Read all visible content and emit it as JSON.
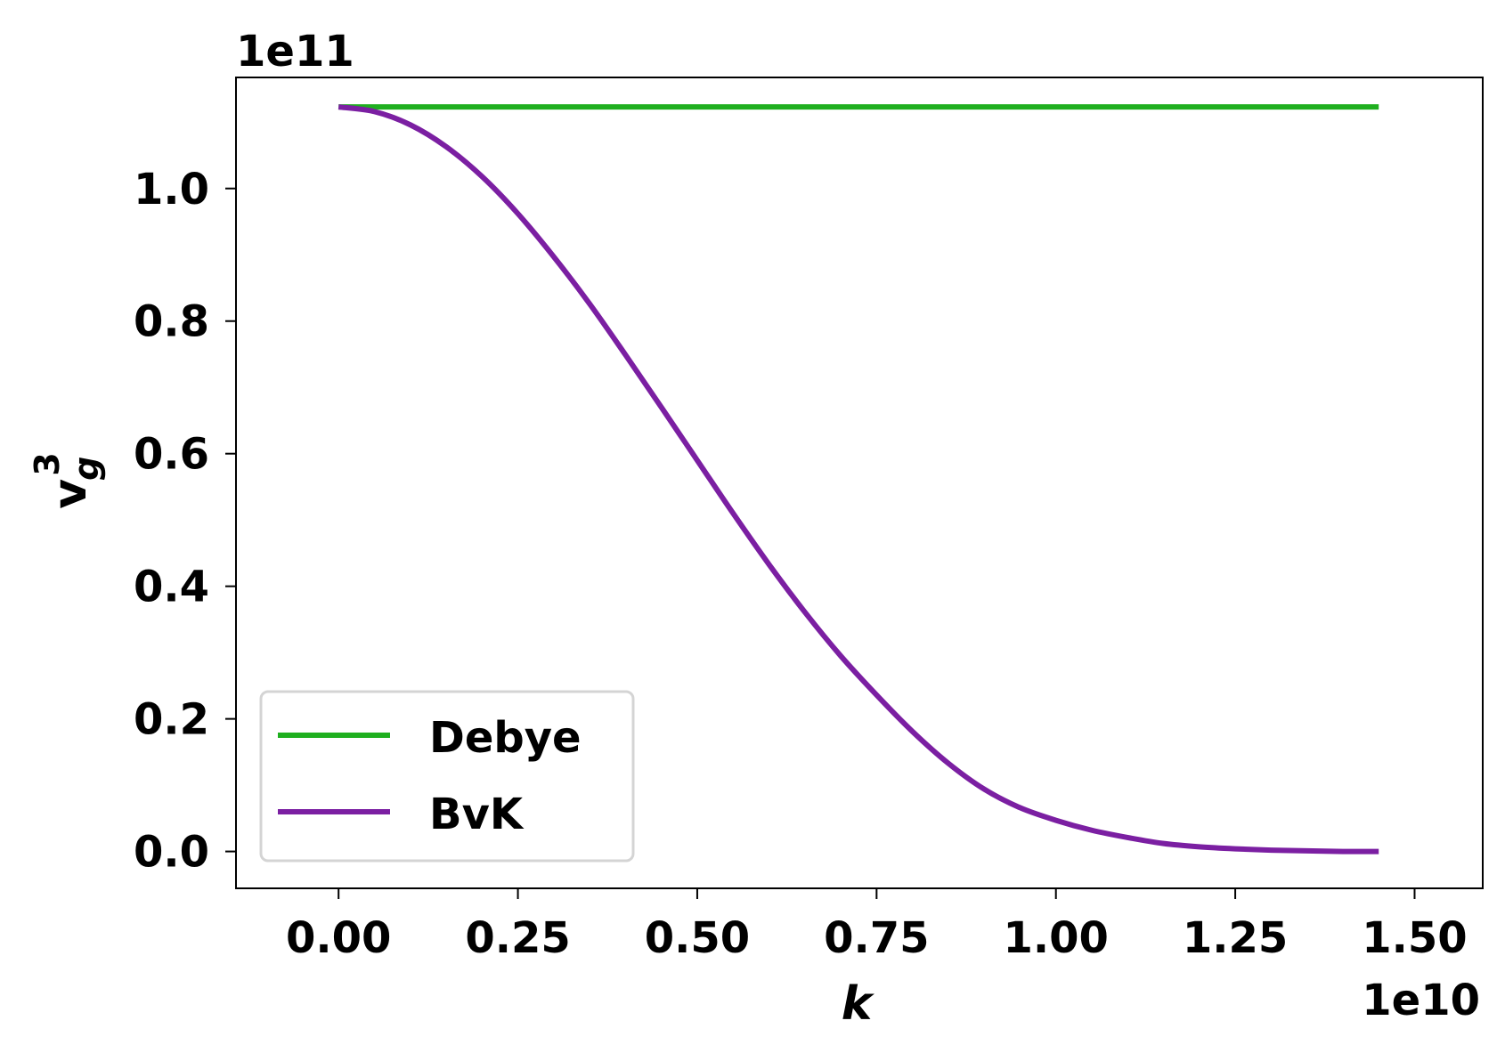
{
  "chart_data": {
    "type": "line",
    "xlabel": "k",
    "ylabel_base": "v",
    "ylabel_sup": "3",
    "ylabel_sub": "g",
    "x_offset_label": "1e10",
    "y_offset_label": "1e11",
    "xlim": [
      -0.143,
      1.595
    ],
    "ylim": [
      -0.0556,
      1.1675
    ],
    "x_ticks": [
      0.0,
      0.25,
      0.5,
      0.75,
      1.0,
      1.25,
      1.5
    ],
    "x_tick_labels": [
      "0.00",
      "0.25",
      "0.50",
      "0.75",
      "1.00",
      "1.25",
      "1.50"
    ],
    "y_ticks": [
      0.0,
      0.2,
      0.4,
      0.6,
      0.8,
      1.0
    ],
    "y_tick_labels": [
      "0.0",
      "0.2",
      "0.4",
      "0.6",
      "0.8",
      "1.0"
    ],
    "grid": false,
    "legend_position": "lower-left",
    "series": [
      {
        "name": "Debye",
        "color": "#1faf1f",
        "x": [
          0.0,
          1.45
        ],
        "y": [
          1.123,
          1.123
        ]
      },
      {
        "name": "BvK",
        "color": "#7b1fa2",
        "x": [
          0.0,
          0.05,
          0.1,
          0.15,
          0.2,
          0.25,
          0.3,
          0.35,
          0.4,
          0.45,
          0.5,
          0.55,
          0.6,
          0.65,
          0.7,
          0.75,
          0.8,
          0.85,
          0.9,
          0.95,
          1.0,
          1.05,
          1.1,
          1.15,
          1.2,
          1.25,
          1.3,
          1.35,
          1.4,
          1.45
        ],
        "y": [
          1.123,
          1.116,
          1.096,
          1.063,
          1.018,
          0.962,
          0.897,
          0.826,
          0.749,
          0.67,
          0.59,
          0.51,
          0.433,
          0.361,
          0.295,
          0.236,
          0.181,
          0.133,
          0.094,
          0.066,
          0.047,
          0.032,
          0.021,
          0.012,
          0.007,
          0.004,
          0.002,
          0.001,
          0.0,
          0.0
        ]
      }
    ]
  }
}
